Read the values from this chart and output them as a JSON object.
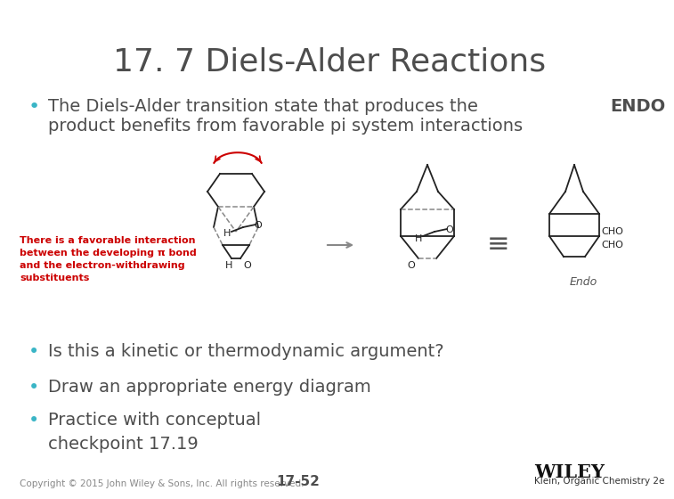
{
  "title": "17. 7 Diels-Alder Reactions",
  "title_color": "#4d4d4d",
  "title_fontsize": 26,
  "bg_color": "#ffffff",
  "bullet_color": "#3ab5c6",
  "text_color": "#4d4d4d",
  "text_fontsize": 14,
  "bullet1_line1": "The Diels-Alder transition state that produces the ",
  "bullet1_bold": "ENDO",
  "bullet1_line2": "product benefits from favorable pi system interactions",
  "bullet_points2": [
    "Is this a kinetic or thermodynamic argument?",
    "Draw an appropriate energy diagram",
    "Practice with conceptual\ncheckpoint 17.19"
  ],
  "red_text_color": "#cc0000",
  "red_text": "There is a favorable interaction\nbetween the developing π bond\nand the electron-withdrawing\nsubstituents",
  "red_text_fontsize": 8,
  "footer_left": "Copyright © 2015 John Wiley & Sons, Inc. All rights reserved.",
  "footer_center": "17-52",
  "footer_right_line1": "WILEY",
  "footer_right_line2": "Klein, Organic Chemistry 2e",
  "footer_fontsize": 7.5,
  "wiley_fontsize": 15,
  "endo_label": "Endo",
  "cho_label": "CHO",
  "arrow_color": "#888888",
  "equiv_color": "#555555",
  "struct_color": "#222222",
  "dashed_color": "#888888",
  "red_arrow_color": "#cc0000"
}
